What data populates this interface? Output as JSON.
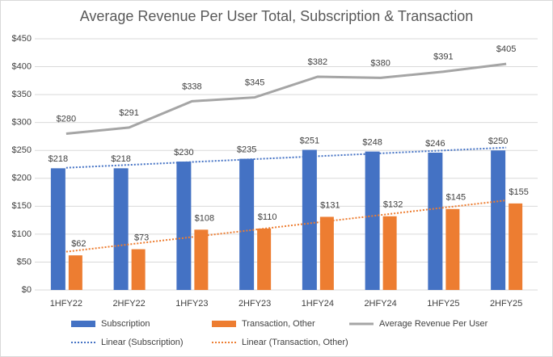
{
  "chart_data": {
    "type": "bar",
    "title": "Average Revenue Per User Total, Subscription & Transaction",
    "categories": [
      "1HFY22",
      "2HFY22",
      "1HFY23",
      "2HFY23",
      "1HFY24",
      "2HFY24",
      "1HFY25",
      "2HFY25"
    ],
    "series": [
      {
        "name": "Subscription",
        "type": "bar",
        "color": "#4472c4",
        "values": [
          218,
          218,
          230,
          235,
          251,
          248,
          246,
          250
        ],
        "value_labels": [
          "$218",
          "$218",
          "$230",
          "$235",
          "$251",
          "$248",
          "$246",
          "$250"
        ],
        "trendline": "Linear (Subscription)"
      },
      {
        "name": "Transaction, Other",
        "type": "bar",
        "color": "#ed7d31",
        "values": [
          62,
          73,
          108,
          110,
          131,
          132,
          145,
          155
        ],
        "value_labels": [
          "$62",
          "$73",
          "$108",
          "$110",
          "$131",
          "$132",
          "$145",
          "$155"
        ],
        "trendline": "Linear (Transaction, Other)"
      },
      {
        "name": "Average Revenue Per User",
        "type": "line",
        "color": "#a5a5a5",
        "values": [
          280,
          291,
          338,
          345,
          382,
          380,
          391,
          405
        ],
        "value_labels": [
          "$280",
          "$291",
          "$338",
          "$345",
          "$382",
          "$380",
          "$391",
          "$405"
        ]
      }
    ],
    "ylim": [
      0,
      450
    ],
    "yticks": [
      {
        "value": 0,
        "label": "$0"
      },
      {
        "value": 50,
        "label": "$50"
      },
      {
        "value": 100,
        "label": "$100"
      },
      {
        "value": 150,
        "label": "$150"
      },
      {
        "value": 200,
        "label": "$200"
      },
      {
        "value": 250,
        "label": "$250"
      },
      {
        "value": 300,
        "label": "$300"
      },
      {
        "value": 350,
        "label": "$350"
      },
      {
        "value": 400,
        "label": "$400"
      },
      {
        "value": 450,
        "label": "$450"
      }
    ],
    "grid": true,
    "legend": "bottom"
  }
}
